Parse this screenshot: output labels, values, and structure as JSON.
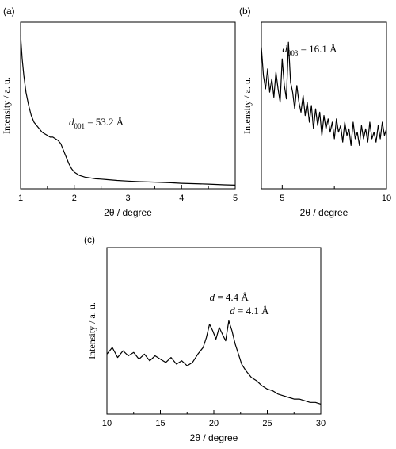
{
  "chart_data": [
    {
      "type": "line",
      "panel_label": "(a)",
      "xlabel": "2θ / degree",
      "ylabel": "Intensity / a. u.",
      "xlim": [
        1,
        5
      ],
      "ylim": [
        0,
        100
      ],
      "xticks": [
        1,
        2,
        3,
        4,
        5
      ],
      "xtick_labels": [
        "1",
        "2",
        "3",
        "4",
        "5"
      ],
      "annotations": [
        {
          "symbol": "d",
          "subscript": "001",
          "text": " = 53.2 Å",
          "x": 1.9,
          "y": 38
        }
      ],
      "series": [
        {
          "x": [
            1.0,
            1.03,
            1.06,
            1.1,
            1.15,
            1.2,
            1.25,
            1.3,
            1.35,
            1.4,
            1.45,
            1.5,
            1.55,
            1.6,
            1.65,
            1.7,
            1.75,
            1.8,
            1.85,
            1.9,
            1.95,
            2.0,
            2.05,
            2.1,
            2.2,
            2.3,
            2.4,
            2.5,
            2.6,
            2.8,
            3.0,
            3.2,
            3.5,
            3.8,
            4.0,
            4.2,
            4.5,
            4.8,
            5.0
          ],
          "y": [
            92,
            78,
            68,
            58,
            50,
            44,
            40,
            38,
            36,
            34,
            33,
            32,
            31,
            31,
            30,
            29,
            27,
            23,
            19,
            15,
            12,
            10,
            9,
            8,
            7,
            6.5,
            6,
            5.8,
            5.5,
            5,
            4.6,
            4.3,
            4,
            3.6,
            3.3,
            3.1,
            2.8,
            2.4,
            2.2
          ]
        }
      ]
    },
    {
      "type": "line",
      "panel_label": "(b)",
      "xlabel": "2θ / degree",
      "ylabel": "Intensity / a. u.",
      "xlim": [
        4,
        10
      ],
      "ylim": [
        0,
        100
      ],
      "xticks": [
        5,
        10
      ],
      "xtick_labels": [
        "5",
        "10"
      ],
      "annotations": [
        {
          "symbol": "d",
          "subscript": "003",
          "text": " = 16.1 Å",
          "x": 5.0,
          "y": 82
        }
      ],
      "series": [
        {
          "x": [
            4.0,
            4.1,
            4.2,
            4.3,
            4.4,
            4.5,
            4.6,
            4.7,
            4.8,
            4.9,
            5.0,
            5.1,
            5.2,
            5.3,
            5.4,
            5.5,
            5.6,
            5.7,
            5.8,
            5.9,
            6.0,
            6.1,
            6.2,
            6.3,
            6.4,
            6.5,
            6.6,
            6.7,
            6.8,
            6.9,
            7.0,
            7.1,
            7.2,
            7.3,
            7.4,
            7.5,
            7.6,
            7.7,
            7.8,
            7.9,
            8.0,
            8.1,
            8.2,
            8.3,
            8.4,
            8.5,
            8.6,
            8.7,
            8.8,
            8.9,
            9.0,
            9.1,
            9.2,
            9.3,
            9.4,
            9.5,
            9.6,
            9.7,
            9.8,
            9.9,
            10.0
          ],
          "y": [
            85,
            68,
            60,
            72,
            58,
            66,
            55,
            70,
            60,
            52,
            78,
            62,
            54,
            88,
            64,
            58,
            48,
            62,
            52,
            46,
            56,
            44,
            52,
            40,
            50,
            36,
            48,
            38,
            46,
            32,
            44,
            36,
            42,
            34,
            40,
            30,
            42,
            34,
            38,
            28,
            40,
            32,
            36,
            26,
            40,
            30,
            34,
            26,
            38,
            30,
            36,
            28,
            40,
            30,
            34,
            28,
            38,
            30,
            40,
            32,
            36
          ]
        }
      ]
    },
    {
      "type": "line",
      "panel_label": "(c)",
      "xlabel": "2θ / degree",
      "ylabel": "Intensity / a. u.",
      "xlim": [
        10,
        30
      ],
      "ylim": [
        0,
        100
      ],
      "xticks": [
        10,
        15,
        20,
        25,
        30
      ],
      "xtick_labels": [
        "10",
        "15",
        "20",
        "25",
        "30"
      ],
      "annotations": [
        {
          "symbol": "d",
          "subscript": "",
          "text": " = 4.4 Å",
          "x": 19.6,
          "y": 68
        },
        {
          "symbol": "d",
          "subscript": "",
          "text": " = 4.1 Å",
          "x": 21.5,
          "y": 60
        }
      ],
      "series": [
        {
          "x": [
            10.0,
            10.5,
            11.0,
            11.5,
            12.0,
            12.5,
            13.0,
            13.5,
            14.0,
            14.5,
            15.0,
            15.5,
            16.0,
            16.5,
            17.0,
            17.5,
            18.0,
            18.5,
            19.0,
            19.3,
            19.6,
            19.9,
            20.2,
            20.5,
            20.8,
            21.1,
            21.4,
            21.7,
            22.0,
            22.3,
            22.6,
            23.0,
            23.5,
            24.0,
            24.5,
            25.0,
            25.5,
            26.0,
            26.5,
            27.0,
            27.5,
            28.0,
            28.5,
            29.0,
            29.5,
            30.0
          ],
          "y": [
            36,
            40,
            34,
            38,
            35,
            37,
            33,
            36,
            32,
            35,
            33,
            31,
            34,
            30,
            32,
            29,
            31,
            36,
            40,
            46,
            54,
            50,
            45,
            52,
            48,
            44,
            56,
            50,
            42,
            36,
            30,
            26,
            22,
            20,
            17,
            15,
            14,
            12,
            11,
            10,
            9,
            9,
            8,
            7,
            7,
            6
          ]
        }
      ]
    }
  ]
}
